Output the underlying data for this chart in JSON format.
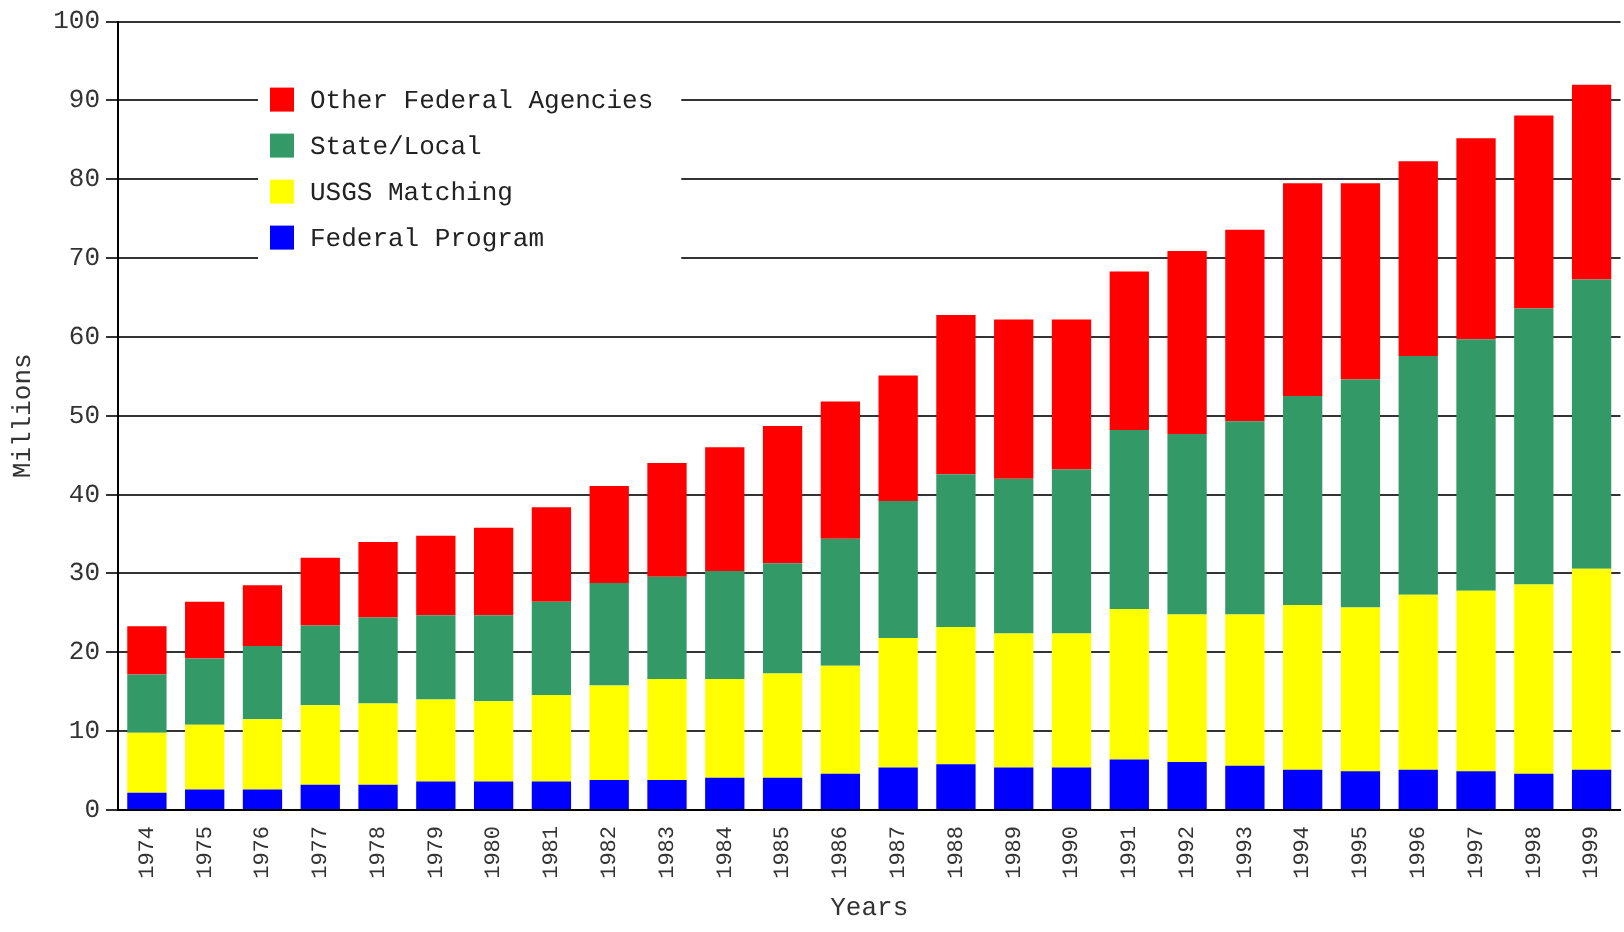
{
  "chart_data": {
    "type": "bar",
    "stacked": true,
    "xlabel": "Years",
    "ylabel": "Millions",
    "categories": [
      "1974",
      "1975",
      "1976",
      "1977",
      "1978",
      "1979",
      "1980",
      "1981",
      "1982",
      "1983",
      "1984",
      "1985",
      "1986",
      "1987",
      "1988",
      "1989",
      "1990",
      "1991",
      "1992",
      "1993",
      "1994",
      "1995",
      "1996",
      "1997",
      "1998",
      "1999"
    ],
    "series": [
      {
        "name": "Federal Program",
        "color": "#0000ff",
        "values": [
          2.2,
          2.6,
          2.6,
          3.2,
          3.2,
          3.6,
          3.6,
          3.6,
          3.8,
          3.8,
          4.1,
          4.1,
          4.6,
          5.4,
          5.8,
          5.4,
          5.4,
          6.4,
          6.1,
          5.6,
          5.1,
          4.9,
          5.1,
          4.9,
          4.6,
          5.1
        ]
      },
      {
        "name": "USGS Matching",
        "color": "#ffff00",
        "values": [
          7.6,
          8.2,
          8.9,
          10.1,
          10.3,
          10.4,
          10.2,
          11.0,
          12.0,
          12.8,
          12.5,
          13.2,
          13.7,
          16.4,
          17.4,
          17.0,
          17.0,
          19.1,
          18.7,
          19.2,
          20.9,
          20.8,
          22.2,
          22.9,
          24.0,
          25.5
        ]
      },
      {
        "name": "State/Local",
        "color": "#339966",
        "values": [
          7.4,
          8.4,
          9.3,
          10.1,
          10.9,
          10.7,
          10.9,
          11.8,
          13.0,
          13.0,
          13.7,
          14.0,
          16.1,
          17.4,
          19.4,
          19.6,
          20.8,
          22.7,
          22.9,
          24.5,
          26.5,
          28.9,
          30.3,
          31.9,
          35.0,
          36.7
        ]
      },
      {
        "name": "Other Federal Agencies",
        "color": "#ff0000",
        "values": [
          6.1,
          7.2,
          7.7,
          8.6,
          9.6,
          10.1,
          11.1,
          12.0,
          12.3,
          14.4,
          15.7,
          17.4,
          17.4,
          15.9,
          20.2,
          20.2,
          19.0,
          20.1,
          23.2,
          24.3,
          27.0,
          24.9,
          24.7,
          25.5,
          24.5,
          24.7
        ]
      }
    ],
    "ylim": [
      0,
      100
    ],
    "yticks": [
      0,
      10,
      20,
      30,
      40,
      50,
      60,
      70,
      80,
      90,
      100
    ],
    "grid": "y",
    "legend": "top left"
  }
}
